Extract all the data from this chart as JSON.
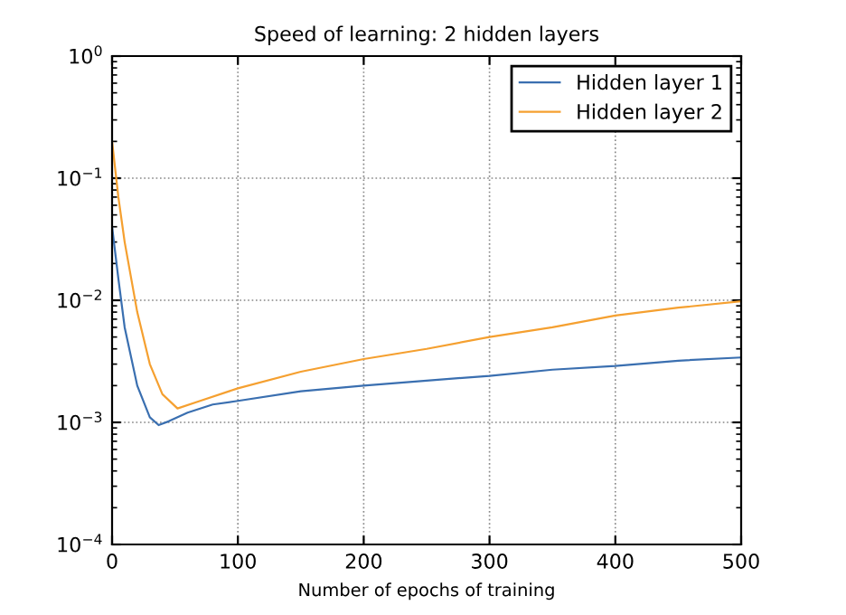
{
  "chart_data": {
    "type": "line",
    "title": "Speed of learning: 2 hidden layers",
    "xlabel": "Number of epochs of training",
    "series": [
      {
        "name": "Hidden layer 1",
        "color": "#3a6fb0",
        "x": [
          0,
          5,
          10,
          20,
          30,
          37,
          45,
          60,
          80,
          100,
          150,
          200,
          250,
          300,
          350,
          400,
          450,
          500
        ],
        "values": [
          0.04,
          0.015,
          0.006,
          0.002,
          0.0011,
          0.00095,
          0.00102,
          0.0012,
          0.0014,
          0.0015,
          0.0018,
          0.002,
          0.0022,
          0.0024,
          0.0027,
          0.0029,
          0.0032,
          0.0034
        ]
      },
      {
        "name": "Hidden layer 2",
        "color": "#f5a030",
        "x": [
          0,
          5,
          10,
          20,
          30,
          40,
          52,
          70,
          100,
          150,
          200,
          250,
          300,
          350,
          400,
          450,
          500
        ],
        "values": [
          0.2,
          0.07,
          0.03,
          0.008,
          0.003,
          0.0017,
          0.0013,
          0.0015,
          0.0019,
          0.0026,
          0.0033,
          0.004,
          0.005,
          0.006,
          0.0075,
          0.0087,
          0.0098
        ]
      }
    ],
    "log": "y",
    "xlim": [
      0,
      500
    ],
    "xticks": [
      0,
      100,
      200,
      300,
      400,
      500
    ],
    "ylim": [
      0.0001,
      1
    ],
    "yticks": [
      {
        "value": 0.0001,
        "label": "10$^{−4}$"
      },
      {
        "value": 0.001,
        "label": "10$^{−3}$"
      },
      {
        "value": 0.01,
        "label": "10$^{−2}$"
      },
      {
        "value": 0.1,
        "label": "10$^{−1}$"
      },
      {
        "value": 1,
        "label": "10$^{0}$"
      }
    ],
    "grid": true,
    "legend": "top right"
  }
}
